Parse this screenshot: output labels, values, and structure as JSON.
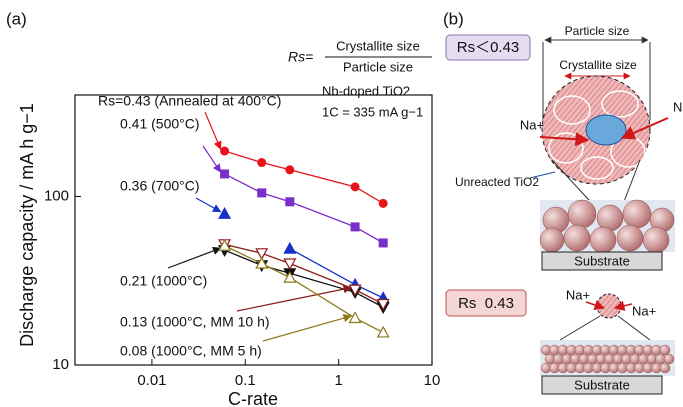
{
  "panel_labels": [
    "(a)",
    "(b)"
  ],
  "chart_data": {
    "type": "line",
    "y_label": "Discharge capacity / mA h g−1",
    "x_label": "C-rate",
    "formula": {
      "lhs": "Rs=",
      "numerator": "Crystallite size",
      "denominator": "Particle size"
    },
    "annotations": [
      "Nb-doped TiO2",
      "1C = 335 mA g−1"
    ],
    "log_x": true,
    "log_y": true,
    "xlim": [
      0.0015,
      10
    ],
    "ylim": [
      10,
      400
    ],
    "xticks": [
      0.01,
      0.1,
      1,
      10
    ],
    "yticks": [
      10,
      100
    ],
    "x": [
      0.06,
      0.15,
      0.3,
      1.5,
      3
    ],
    "series": [
      {
        "name": "Rs=0.43 (Annealed at 400°C)",
        "color": "#e8141c",
        "marker": "circle",
        "values": [
          186,
          159,
          144,
          114,
          91
        ]
      },
      {
        "name": "0.41 (500°C)",
        "color": "#7b2fc9",
        "marker": "square",
        "values": [
          136,
          105,
          93,
          66,
          53
        ]
      },
      {
        "name": "0.36 (700°C)",
        "color": "#1432c8",
        "marker": "triangle-up",
        "values": [
          79,
          null,
          49,
          30,
          25
        ]
      },
      {
        "name": "0.21 (1000°C)",
        "color": "#111111",
        "marker": "triangle-down",
        "values": [
          48,
          39,
          35,
          27,
          22
        ]
      },
      {
        "name": "0.13 (1000°C, MM 10 h)",
        "color": "#8b1a1a",
        "marker": "open-triangle-down",
        "values": [
          52,
          46,
          40,
          28,
          23
        ]
      },
      {
        "name": "0.08 (1000°C, MM 5 h)",
        "color": "#8c7a1c",
        "marker": "open-triangle-up",
        "values": [
          51,
          40,
          33,
          19,
          15.6
        ]
      }
    ]
  },
  "diagram": {
    "top_box": "Rs＜0.43",
    "particle_size": "Particle size",
    "crystallite_size": "Crystallite size",
    "ion_left": "Na+",
    "ion_right": "Na+",
    "unreacted": "Unreacted TiO2",
    "substrate_top": "Substrate",
    "bottom_box": "Rs  0.43",
    "ion_left_2": "Na+",
    "ion_right_2": "Na+",
    "substrate_bottom": "Substrate"
  }
}
